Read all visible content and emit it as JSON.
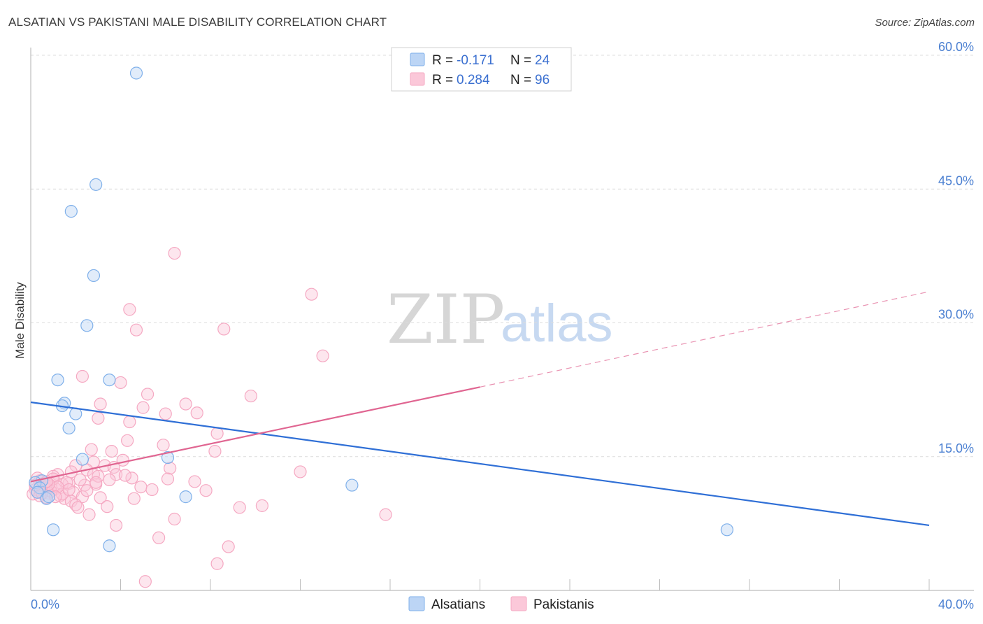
{
  "title": "ALSATIAN VS PAKISTANI MALE DISABILITY CORRELATION CHART",
  "source": "Source: ZipAtlas.com",
  "watermark": {
    "zip": "ZIP",
    "atlas": "atlas"
  },
  "chart_data": {
    "type": "scatter",
    "title": "ALSATIAN VS PAKISTANI MALE DISABILITY CORRELATION CHART",
    "xlabel": "",
    "ylabel": "Male Disability",
    "xlim": [
      0,
      40
    ],
    "ylim": [
      0,
      60
    ],
    "x_tick_labels": [
      "0.0%",
      "40.0%"
    ],
    "y_ticks": [
      15,
      30,
      45,
      60
    ],
    "y_tick_labels": [
      "15.0%",
      "30.0%",
      "45.0%",
      "60.0%"
    ],
    "grid": true,
    "legend_position": "top-center",
    "series": [
      {
        "name": "Alsatians",
        "color": "#7fb0ea",
        "line_color": "#2f6fd6",
        "R": "-0.171",
        "N": "24",
        "trend": {
          "x0": 0,
          "y0": 21.1,
          "x1": 40,
          "y1": 7.3
        },
        "points": [
          [
            4.7,
            58.0
          ],
          [
            2.9,
            45.5
          ],
          [
            1.8,
            42.5
          ],
          [
            2.8,
            35.3
          ],
          [
            2.5,
            29.7
          ],
          [
            1.2,
            23.6
          ],
          [
            3.5,
            23.6
          ],
          [
            1.5,
            21.0
          ],
          [
            1.4,
            20.7
          ],
          [
            2.0,
            19.8
          ],
          [
            1.7,
            18.2
          ],
          [
            2.3,
            14.7
          ],
          [
            6.1,
            14.9
          ],
          [
            0.5,
            12.3
          ],
          [
            0.2,
            12.1
          ],
          [
            0.4,
            11.5
          ],
          [
            0.3,
            11.0
          ],
          [
            0.7,
            10.3
          ],
          [
            0.8,
            10.5
          ],
          [
            14.3,
            11.8
          ],
          [
            6.9,
            10.5
          ],
          [
            1.0,
            6.8
          ],
          [
            3.5,
            5.0
          ],
          [
            31.0,
            6.8
          ]
        ]
      },
      {
        "name": "Pakistanis",
        "color": "#f5a8c2",
        "line_color": "#e06591",
        "R": "0.284",
        "N": "96",
        "trend": {
          "x0": 0,
          "y0": 12.2,
          "x1": 20,
          "y1": 22.8,
          "dash_x1": 40,
          "dash_y1": 33.5
        },
        "points": [
          [
            6.4,
            37.8
          ],
          [
            12.5,
            33.2
          ],
          [
            4.4,
            31.5
          ],
          [
            4.7,
            29.2
          ],
          [
            8.6,
            29.3
          ],
          [
            13.0,
            26.3
          ],
          [
            2.3,
            24.0
          ],
          [
            4.0,
            23.3
          ],
          [
            5.2,
            22.0
          ],
          [
            9.8,
            21.8
          ],
          [
            3.1,
            20.9
          ],
          [
            6.9,
            20.9
          ],
          [
            5.0,
            20.5
          ],
          [
            6.0,
            19.8
          ],
          [
            7.4,
            19.9
          ],
          [
            3.0,
            19.3
          ],
          [
            4.4,
            18.9
          ],
          [
            8.3,
            17.6
          ],
          [
            4.3,
            16.8
          ],
          [
            5.9,
            16.3
          ],
          [
            2.7,
            15.8
          ],
          [
            3.6,
            15.6
          ],
          [
            8.2,
            15.6
          ],
          [
            2.8,
            14.4
          ],
          [
            4.1,
            14.6
          ],
          [
            2.0,
            14.0
          ],
          [
            3.3,
            14.0
          ],
          [
            6.2,
            13.7
          ],
          [
            3.7,
            13.8
          ],
          [
            2.5,
            13.5
          ],
          [
            1.8,
            13.3
          ],
          [
            12.0,
            13.3
          ],
          [
            3.8,
            13.0
          ],
          [
            1.2,
            13.0
          ],
          [
            2.8,
            13.0
          ],
          [
            1.0,
            12.8
          ],
          [
            4.5,
            12.6
          ],
          [
            6.1,
            12.5
          ],
          [
            7.3,
            12.2
          ],
          [
            1.7,
            12.0
          ],
          [
            0.4,
            12.3
          ],
          [
            1.4,
            11.9
          ],
          [
            2.9,
            11.9
          ],
          [
            0.9,
            11.7
          ],
          [
            2.4,
            11.8
          ],
          [
            0.6,
            11.5
          ],
          [
            1.1,
            11.4
          ],
          [
            0.2,
            11.3
          ],
          [
            0.5,
            11.2
          ],
          [
            1.9,
            11.0
          ],
          [
            0.3,
            11.0
          ],
          [
            0.8,
            10.9
          ],
          [
            0.1,
            10.8
          ],
          [
            1.3,
            10.6
          ],
          [
            4.9,
            11.6
          ],
          [
            5.4,
            11.3
          ],
          [
            7.8,
            11.2
          ],
          [
            1.5,
            10.3
          ],
          [
            2.3,
            10.5
          ],
          [
            3.1,
            10.4
          ],
          [
            4.6,
            10.3
          ],
          [
            0.7,
            10.4
          ],
          [
            0.4,
            10.6
          ],
          [
            1.8,
            10.0
          ],
          [
            2.0,
            9.6
          ],
          [
            2.1,
            9.3
          ],
          [
            3.4,
            9.4
          ],
          [
            9.3,
            9.3
          ],
          [
            10.3,
            9.5
          ],
          [
            2.6,
            8.5
          ],
          [
            15.8,
            8.5
          ],
          [
            6.4,
            8.0
          ],
          [
            3.8,
            7.3
          ],
          [
            5.7,
            5.9
          ],
          [
            8.8,
            4.9
          ],
          [
            8.3,
            3.0
          ],
          [
            5.1,
            1.0
          ],
          [
            2.2,
            12.4
          ],
          [
            3.0,
            12.8
          ],
          [
            1.6,
            12.1
          ],
          [
            0.9,
            11.1
          ],
          [
            1.0,
            12.5
          ],
          [
            0.6,
            12.0
          ],
          [
            1.4,
            10.8
          ],
          [
            0.3,
            12.6
          ],
          [
            2.5,
            11.2
          ],
          [
            3.5,
            12.4
          ],
          [
            4.2,
            12.9
          ],
          [
            1.2,
            11.6
          ],
          [
            0.8,
            11.9
          ],
          [
            0.5,
            10.9
          ],
          [
            0.2,
            11.8
          ],
          [
            1.7,
            11.3
          ],
          [
            2.9,
            12.1
          ],
          [
            1.1,
            10.5
          ],
          [
            0.7,
            12.2
          ]
        ]
      }
    ]
  }
}
